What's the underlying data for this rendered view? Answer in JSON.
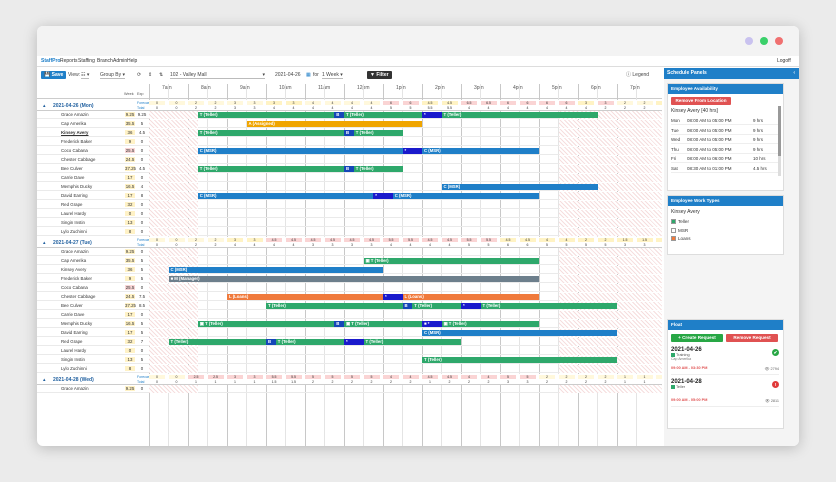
{
  "nav": {
    "brand": "StaffPro",
    "items": [
      "Reports",
      "Staffing",
      "Branch",
      "Admin",
      "Help"
    ],
    "logoff": "Logoff"
  },
  "toolbar": {
    "save": "Save",
    "view_label": "View:",
    "view_value": "☷",
    "group_label": "Group By",
    "location": "102 - Valley Mall",
    "date": "2021-04-26",
    "for_label": "for",
    "period": "1 Week",
    "filter": "Filter",
    "legend": "Legend"
  },
  "grid": {
    "hours": [
      "7am",
      "8am",
      "9am",
      "10am",
      "11am",
      "12pm",
      "1pm",
      "2pm",
      "3pm",
      "4pm",
      "5pm",
      "6pm",
      "7pm"
    ],
    "col_week": "Week",
    "col_exp": "Exp"
  },
  "days": [
    {
      "label": "2021-04-26 (Mon)",
      "forecast_label": "Forecast",
      "total_label": "Total",
      "forecast": [
        "0",
        "0",
        "2",
        "2",
        "3",
        "3",
        "3",
        "3",
        "4",
        "4",
        "4",
        "4",
        "6",
        "6",
        "4.5",
        "4.5",
        "6.5",
        "6.5",
        "6",
        "6",
        "6",
        "6",
        "3",
        "3",
        "2",
        "2",
        "0",
        "0"
      ],
      "total": [
        "0",
        "0",
        "2",
        "2",
        "3",
        "3",
        "4",
        "4",
        "4",
        "4",
        "4",
        "4",
        "5",
        "5",
        "5.5",
        "5.5",
        "4",
        "4",
        "4",
        "4",
        "4",
        "4",
        "4",
        "2",
        "2",
        "2",
        "1",
        "0"
      ],
      "rows": [
        {
          "name": "Grace Amazin",
          "week": "9.25",
          "exp": "9.25",
          "bars": [
            {
              "label": "T (Teller)",
              "start": 8.25,
              "end": 11.75,
              "color": "#2ea86b"
            },
            {
              "label": "B",
              "start": 11.75,
              "end": 12.0,
              "color": "#1546b8"
            },
            {
              "label": "T (Teller)",
              "start": 12.0,
              "end": 14.0,
              "color": "#2ea86b"
            },
            {
              "label": "*",
              "start": 14.0,
              "end": 14.5,
              "color": "#1a1acc"
            },
            {
              "label": "T (Teller)",
              "start": 14.5,
              "end": 18.5,
              "color": "#2ea86b"
            }
          ]
        },
        {
          "name": "Cap Amerika",
          "week": "35.5",
          "exp": "5",
          "bars": [
            {
              "label": "A (Assigned)",
              "start": 9.5,
              "end": 14.0,
              "color": "#f0a500"
            }
          ]
        },
        {
          "name": "Kinsey Avery",
          "week": "36",
          "exp": "4.5",
          "bars": [
            {
              "label": "T (Teller)",
              "start": 8.25,
              "end": 12.0,
              "color": "#2ea86b"
            },
            {
              "label": "B",
              "start": 12.0,
              "end": 12.25,
              "color": "#1546b8"
            },
            {
              "label": "T (Teller)",
              "start": 12.25,
              "end": 13.5,
              "color": "#2ea86b"
            }
          ]
        },
        {
          "name": "Frederick Baker",
          "week": "9",
          "exp": "0",
          "bars": []
        },
        {
          "name": "Coco Cabana",
          "week": "25.5",
          "exp": "0",
          "bars": [
            {
              "label": "C (MSR)",
              "start": 8.25,
              "end": 13.5,
              "color": "#1f7fc8"
            },
            {
              "label": "*",
              "start": 13.5,
              "end": 14.0,
              "color": "#1a1acc"
            },
            {
              "label": "C (MSR)",
              "start": 14.0,
              "end": 17.0,
              "color": "#1f7fc8"
            }
          ]
        },
        {
          "name": "Chester Cabbage",
          "week": "24.5",
          "exp": "0",
          "bars": []
        },
        {
          "name": "Bee Culver",
          "week": "37.25",
          "exp": "4.5",
          "bars": [
            {
              "label": "T (Teller)",
              "start": 8.25,
              "end": 12.0,
              "color": "#2ea86b"
            },
            {
              "label": "B",
              "start": 12.0,
              "end": 12.25,
              "color": "#1546b8"
            },
            {
              "label": "T (Teller)",
              "start": 12.25,
              "end": 13.5,
              "color": "#2ea86b"
            }
          ]
        },
        {
          "name": "Carrie Dave",
          "week": "17",
          "exp": "0",
          "bars": []
        },
        {
          "name": "Memphis Ducky",
          "week": "16.5",
          "exp": "4",
          "bars": [
            {
              "label": "C (MSR)",
              "start": 14.5,
              "end": 18.5,
              "color": "#1f7fc8"
            }
          ]
        },
        {
          "name": "David Earring",
          "week": "17",
          "exp": "8",
          "bars": [
            {
              "label": "C (MSR)",
              "start": 8.25,
              "end": 12.75,
              "color": "#1f7fc8"
            },
            {
              "label": "*",
              "start": 12.75,
              "end": 13.25,
              "color": "#1a1acc"
            },
            {
              "label": "C (MSR)",
              "start": 13.25,
              "end": 17.0,
              "color": "#1f7fc8"
            }
          ]
        },
        {
          "name": "Red Grape",
          "week": "32",
          "exp": "0",
          "bars": []
        },
        {
          "name": "Laurel Hardy",
          "week": "0",
          "exp": "0",
          "bars": []
        },
        {
          "name": "Singin Instin",
          "week": "13",
          "exp": "0",
          "bars": []
        },
        {
          "name": "Lylo Zuchinni",
          "week": "8",
          "exp": "0",
          "bars": []
        }
      ]
    },
    {
      "label": "2021-04-27 (Tue)",
      "forecast_label": "Forecast",
      "total_label": "Total",
      "forecast": [
        "0",
        "0",
        "2",
        "2",
        "3",
        "3",
        "4.5",
        "4.5",
        "4.5",
        "4.5",
        "4.5",
        "4.5",
        "5.5",
        "5.5",
        "4.5",
        "4.5",
        "5.5",
        "5.5",
        "4.5",
        "4.5",
        "4",
        "4",
        "2",
        "2",
        "1.5",
        "1.5",
        "0",
        "0"
      ],
      "total": [
        "0",
        "0",
        "2",
        "2",
        "4",
        "4",
        "4",
        "4",
        "3",
        "3",
        "3",
        "3",
        "4",
        "4",
        "4",
        "4",
        "5",
        "5",
        "6",
        "6",
        "5",
        "5",
        "5",
        "5",
        "3",
        "3",
        "2",
        "0"
      ],
      "rows": [
        {
          "name": "Grace Amazin",
          "week": "9.25",
          "exp": "0",
          "bars": []
        },
        {
          "name": "Cap Amerika",
          "week": "35.5",
          "exp": "5",
          "bars": [
            {
              "label": "▣ T (Teller)",
              "start": 12.5,
              "end": 17.0,
              "color": "#2ea86b"
            }
          ]
        },
        {
          "name": "Kinsey Avery",
          "week": "36",
          "exp": "5",
          "bars": [
            {
              "label": "C (MSR)",
              "start": 7.5,
              "end": 13.0,
              "color": "#1f7fc8"
            }
          ]
        },
        {
          "name": "Frederick Baker",
          "week": "9",
          "exp": "5",
          "bars": [
            {
              "label": "■ M (Manager)",
              "start": 7.5,
              "end": 17.0,
              "color": "#6d7f8c"
            }
          ]
        },
        {
          "name": "Coco Cabana",
          "week": "25.5",
          "exp": "0",
          "bars": []
        },
        {
          "name": "Chester Cabbage",
          "week": "24.5",
          "exp": "7.5",
          "bars": [
            {
              "label": "L (Loans)",
              "start": 9.0,
              "end": 13.0,
              "color": "#f07a3c"
            },
            {
              "label": "*",
              "start": 13.0,
              "end": 13.5,
              "color": "#1a1acc"
            },
            {
              "label": "L (Loans)",
              "start": 13.5,
              "end": 17.0,
              "color": "#f07a3c"
            }
          ]
        },
        {
          "name": "Bee Culver",
          "week": "37.25",
          "exp": "8.5",
          "bars": [
            {
              "label": "T (Teller)",
              "start": 10.0,
              "end": 13.5,
              "color": "#2ea86b"
            },
            {
              "label": "B",
              "start": 13.5,
              "end": 13.75,
              "color": "#1546b8"
            },
            {
              "label": "T (Teller)",
              "start": 13.75,
              "end": 15.0,
              "color": "#2ea86b"
            },
            {
              "label": "*",
              "start": 15.0,
              "end": 15.5,
              "color": "#1a1acc"
            },
            {
              "label": "T (Teller)",
              "start": 15.5,
              "end": 19.0,
              "color": "#2ea86b"
            }
          ]
        },
        {
          "name": "Carrie Dave",
          "week": "17",
          "exp": "0",
          "bars": []
        },
        {
          "name": "Memphis Ducky",
          "week": "16.5",
          "exp": "5",
          "bars": [
            {
              "label": "▣ T (Teller)",
              "start": 8.25,
              "end": 11.75,
              "color": "#2ea86b"
            },
            {
              "label": "B",
              "start": 11.75,
              "end": 12.0,
              "color": "#1546b8"
            },
            {
              "label": "▣ T (Teller)",
              "start": 12.0,
              "end": 14.0,
              "color": "#2ea86b"
            },
            {
              "label": "■ *",
              "start": 14.0,
              "end": 14.5,
              "color": "#1a1acc"
            },
            {
              "label": "▣ T (Teller)",
              "start": 14.5,
              "end": 17.0,
              "color": "#2ea86b"
            }
          ]
        },
        {
          "name": "David Earring",
          "week": "17",
          "exp": "5",
          "bars": [
            {
              "label": "C (MSR)",
              "start": 14.0,
              "end": 19.0,
              "color": "#1f7fc8"
            }
          ]
        },
        {
          "name": "Red Grape",
          "week": "32",
          "exp": "7",
          "bars": [
            {
              "label": "T (Teller)",
              "start": 7.5,
              "end": 10.0,
              "color": "#2ea86b"
            },
            {
              "label": "B",
              "start": 10.0,
              "end": 10.25,
              "color": "#1546b8"
            },
            {
              "label": "T (Teller)",
              "start": 10.25,
              "end": 12.0,
              "color": "#2ea86b"
            },
            {
              "label": "*",
              "start": 12.0,
              "end": 12.5,
              "color": "#1a1acc"
            },
            {
              "label": "T (Teller)",
              "start": 12.5,
              "end": 15.0,
              "color": "#2ea86b"
            }
          ]
        },
        {
          "name": "Laurel Hardy",
          "week": "0",
          "exp": "0",
          "bars": []
        },
        {
          "name": "Singin Instin",
          "week": "13",
          "exp": "5",
          "bars": [
            {
              "label": "T (Teller)",
              "start": 14.0,
              "end": 19.0,
              "color": "#2ea86b"
            }
          ]
        },
        {
          "name": "Lylo Zuchinni",
          "week": "8",
          "exp": "0",
          "bars": []
        }
      ]
    },
    {
      "label": "2021-04-28 (Wed)",
      "forecast_label": "Forecast",
      "total_label": "Total",
      "forecast": [
        "0",
        "0",
        "2.5",
        "2.5",
        "3",
        "3",
        "5.5",
        "5.5",
        "5",
        "5",
        "5",
        "5",
        "4",
        "4",
        "4.5",
        "4.5",
        "4",
        "4",
        "5",
        "5",
        "2",
        "2",
        "2",
        "2",
        "1",
        "1",
        "0",
        "0"
      ],
      "total": [
        "0",
        "0",
        "1",
        "1",
        "1",
        "1",
        "1.5",
        "1.5",
        "2",
        "2",
        "2",
        "2",
        "2",
        "2",
        "1",
        "2",
        "2",
        "2",
        "3",
        "3",
        "2",
        "2",
        "2",
        "2",
        "1",
        "1",
        "0",
        "0"
      ],
      "rows": [
        {
          "name": "Grace Amazin",
          "week": "9.25",
          "exp": "0",
          "bars": []
        }
      ]
    }
  ],
  "side": {
    "header": "Schedule Panels",
    "availability": {
      "title": "Employee Availability",
      "remove": "Remove From Location",
      "employee": "Kinsey Avery",
      "hours": "[40 hrs]",
      "rows": [
        [
          "Mon",
          "08:00 AM to 05:00 PM",
          "9 hrs"
        ],
        [
          "Tue",
          "08:00 AM to 05:00 PM",
          "9 hrs"
        ],
        [
          "Wed",
          "08:00 AM to 05:00 PM",
          "9 hrs"
        ],
        [
          "Thu",
          "08:00 AM to 05:00 PM",
          "9 hrs"
        ],
        [
          "Fri",
          "08:00 AM to 06:00 PM",
          "10 hrs"
        ],
        [
          "Sat",
          "08:30 AM to 01:00 PM",
          "4.5 hrs"
        ]
      ]
    },
    "worktypes": {
      "title": "Employee Work Types",
      "employee": "Kinsey Avery",
      "items": [
        {
          "label": "Teller",
          "color": "#2ea86b",
          "checked": true
        },
        {
          "label": "MSR",
          "color": "#ffffff",
          "checked": false
        },
        {
          "label": "Loans",
          "color": "#f07a3c",
          "checked": true
        }
      ]
    },
    "float": {
      "title": "Float",
      "create": "+ Create Request",
      "remove": "Remove Request",
      "requests": [
        {
          "date": "2021-04-26",
          "type": "Training",
          "who": "Cap Amerika",
          "time": "09:00 AM - 03:30 PM",
          "views": "2794",
          "status": "ok"
        },
        {
          "date": "2021-04-28",
          "type": "Teller",
          "who": "",
          "time": "09:00 AM - 05:00 PM",
          "views": "2811",
          "status": "err"
        }
      ]
    }
  }
}
